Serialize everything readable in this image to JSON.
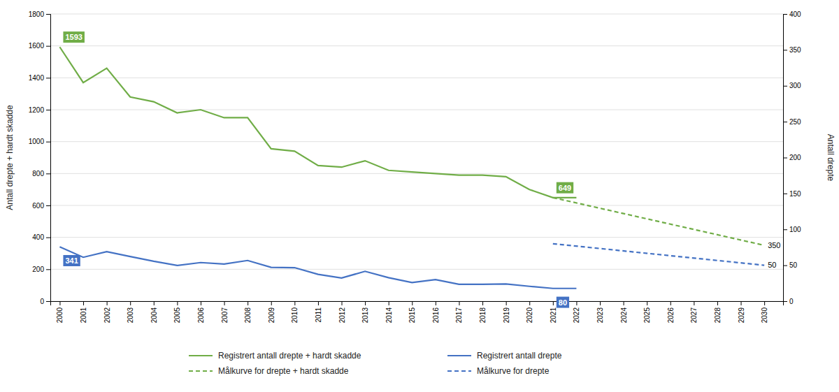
{
  "chart_data": {
    "type": "line",
    "xlim": [
      1999.6,
      2030.8
    ],
    "xticks": [
      2000,
      2001,
      2002,
      2003,
      2004,
      2005,
      2006,
      2007,
      2008,
      2009,
      2010,
      2011,
      2012,
      2013,
      2014,
      2015,
      2016,
      2017,
      2018,
      2019,
      2020,
      2021,
      2022,
      2023,
      2024,
      2025,
      2026,
      2027,
      2028,
      2029,
      2030
    ],
    "ylim": [
      0,
      1800
    ],
    "yticks": [
      0,
      200,
      400,
      600,
      800,
      1000,
      1200,
      1400,
      1600,
      1800
    ],
    "y2lim": [
      0,
      400
    ],
    "y2ticks": [
      0,
      50,
      100,
      150,
      200,
      250,
      300,
      350,
      400
    ],
    "ylabel": "Antall drepte + hardt skadde",
    "y2label": "Antall drepte",
    "grid": true,
    "legend": "bottom",
    "series": [
      {
        "name": "Registrert antall drepte + hardt skadde",
        "color": "#70AD47",
        "line_style": "solid",
        "x": [
          2000,
          2001,
          2002,
          2003,
          2004,
          2005,
          2006,
          2007,
          2008,
          2009,
          2010,
          2011,
          2012,
          2013,
          2014,
          2015,
          2016,
          2017,
          2018,
          2019,
          2020,
          2021,
          2022
        ],
        "values": [
          1593,
          1370,
          1460,
          1280,
          1250,
          1180,
          1200,
          1150,
          1150,
          955,
          940,
          850,
          840,
          880,
          820,
          810,
          800,
          790,
          790,
          780,
          700,
          649,
          649
        ]
      },
      {
        "name": "Målkurve for drepte + hardt skadde",
        "color": "#70AD47",
        "line_style": "dashed",
        "x": [
          2021,
          2030
        ],
        "values": [
          649,
          350
        ]
      },
      {
        "name": "Registrert antall drepte",
        "color": "#4472C4",
        "line_style": "solid",
        "x": [
          2000,
          2001,
          2002,
          2003,
          2004,
          2005,
          2006,
          2007,
          2008,
          2009,
          2010,
          2011,
          2012,
          2013,
          2014,
          2015,
          2016,
          2017,
          2018,
          2019,
          2020,
          2021,
          2022
        ],
        "values": [
          341,
          275,
          310,
          280,
          250,
          224,
          242,
          233,
          255,
          212,
          210,
          168,
          145,
          187,
          147,
          117,
          135,
          106,
          106,
          108,
          93,
          80,
          80
        ]
      },
      {
        "name": "Målkurve for drepte",
        "color": "#4472C4",
        "line_style": "dashed",
        "axis": "y2",
        "x": [
          2021,
          2030
        ],
        "values": [
          80,
          50
        ]
      }
    ],
    "annotations": [
      {
        "text": "1593",
        "x": 2000,
        "y": 1593,
        "color": "#70AD47"
      },
      {
        "text": "341",
        "x": 2000,
        "y": 341,
        "color": "#4472C4"
      },
      {
        "text": "649",
        "x": 2021,
        "y": 649,
        "color": "#70AD47"
      },
      {
        "text": "80",
        "x": 2021,
        "y": 80,
        "color": "#4472C4"
      },
      {
        "text": "350",
        "x": 2030,
        "y": 350
      },
      {
        "text": "50",
        "x": 2030,
        "y": 50,
        "axis": "y2"
      }
    ]
  }
}
